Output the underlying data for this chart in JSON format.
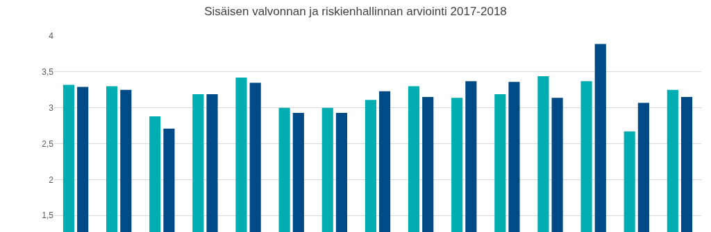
{
  "chart_data": {
    "type": "bar",
    "title": "Sisäisen valvonnan ja riskienhallinnan arviointi 2017-2018",
    "categories": [
      null,
      null,
      null,
      null,
      null,
      null,
      null,
      null,
      null,
      null,
      null,
      null,
      null,
      null,
      null
    ],
    "series": [
      {
        "color": "#00adb0",
        "values": [
          3.32,
          3.3,
          2.88,
          3.19,
          3.42,
          3.0,
          3.0,
          3.11,
          3.3,
          3.14,
          3.19,
          3.44,
          3.37,
          2.67,
          3.25
        ]
      },
      {
        "color": "#004a87",
        "values": [
          3.29,
          3.25,
          2.71,
          3.19,
          3.35,
          2.93,
          2.93,
          3.23,
          3.15,
          3.37,
          3.36,
          3.14,
          3.89,
          3.07,
          3.15
        ]
      }
    ],
    "ylim": [
      1.27,
      4
    ],
    "yticks": [
      {
        "value": 1.5,
        "label": "1,5"
      },
      2,
      {
        "value": 2.5,
        "label": "2,5"
      },
      3,
      {
        "value": 3.5,
        "label": "3,5"
      },
      4
    ],
    "grid": "y",
    "tick_labels": "y"
  }
}
